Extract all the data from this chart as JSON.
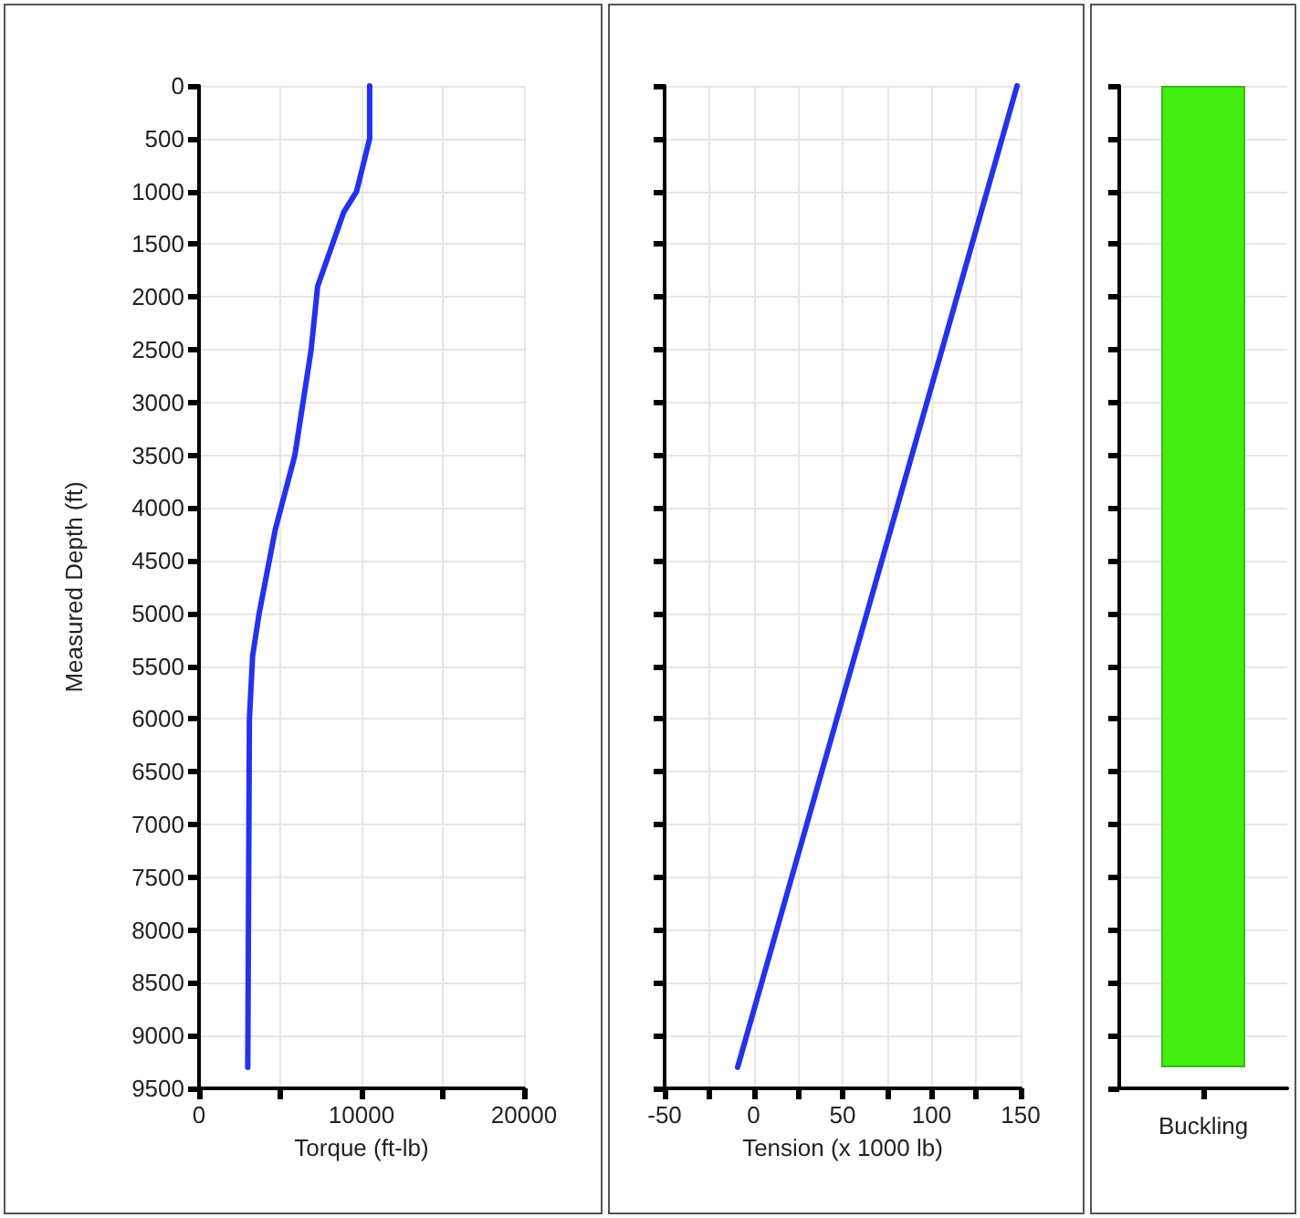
{
  "chart_data": [
    {
      "type": "line",
      "xlabel": "Torque (ft-lb)",
      "ylabel": "Measured Depth (ft)",
      "xlim": [
        0,
        20000
      ],
      "xticks": [
        0,
        {
          "value": 5000,
          "label": null
        },
        10000,
        {
          "value": 15000,
          "label": null
        },
        20000
      ],
      "ylim": [
        9500,
        0
      ],
      "yticks": [
        0,
        500,
        1000,
        1500,
        2000,
        2500,
        3000,
        3500,
        4000,
        4500,
        5000,
        5500,
        6000,
        6500,
        7000,
        7500,
        8000,
        8500,
        9000,
        9500
      ],
      "grid": true,
      "marker": "none",
      "line_style": "solid",
      "series": [
        {
          "color": "#2233ee",
          "x": [
            10500,
            10500,
            9700,
            8900,
            7300,
            6900,
            5900,
            4700,
            3700,
            3300,
            3100,
            3000
          ],
          "values": [
            0,
            500,
            1000,
            1200,
            1900,
            2500,
            3500,
            4200,
            5000,
            5400,
            6000,
            9300
          ]
        }
      ]
    },
    {
      "type": "line",
      "xlabel": "Tension (x 1000 lb)",
      "xlim": [
        -50,
        150
      ],
      "xticks": [
        -50,
        {
          "value": -25,
          "label": null
        },
        0,
        {
          "value": 25,
          "label": null
        },
        50,
        {
          "value": 75,
          "label": null
        },
        100,
        {
          "value": 125,
          "label": null
        },
        150
      ],
      "ylim": [
        9500,
        0
      ],
      "yticks": [
        0,
        500,
        1000,
        1500,
        2000,
        2500,
        3000,
        3500,
        4000,
        4500,
        5000,
        5500,
        6000,
        6500,
        7000,
        7500,
        8000,
        8500,
        9000,
        9500
      ],
      "tick_labels": "x",
      "grid": true,
      "marker": "none",
      "line_style": "solid",
      "series": [
        {
          "color": "#2233ee",
          "x": [
            148,
            -9
          ],
          "values": [
            0,
            9300
          ]
        }
      ]
    },
    {
      "type": "bar",
      "categories": [
        "Buckling"
      ],
      "values": [
        9300
      ],
      "color": "#44ee11",
      "ylim": [
        9500,
        0
      ],
      "yticks": [
        0,
        500,
        1000,
        1500,
        2000,
        2500,
        3000,
        3500,
        4000,
        4500,
        5000,
        5500,
        6000,
        6500,
        7000,
        7500,
        8000,
        8500,
        9000,
        9500
      ],
      "tick_labels": "x",
      "grid": true
    }
  ]
}
